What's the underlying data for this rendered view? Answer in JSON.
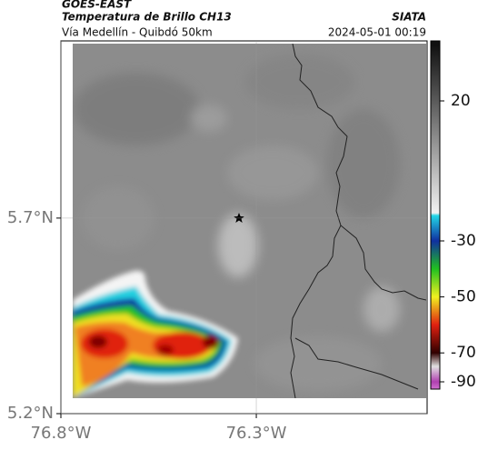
{
  "header": {
    "source": "GOES-EAST",
    "title": "Temperatura de Brillo CH13",
    "brand": "SIATA",
    "route": "Vía Medellín - Quibdó 50km",
    "datetime": "2024-05-01 00:19"
  },
  "map": {
    "xlim": [
      -76.8,
      -75.863
    ],
    "ylim": [
      5.2,
      6.153
    ],
    "xticks": [
      {
        "value": -76.8,
        "label": "76.8°W"
      },
      {
        "value": -76.3,
        "label": "76.3°W"
      }
    ],
    "yticks": [
      {
        "value": 5.2,
        "label": "5.2°N"
      },
      {
        "value": 5.7,
        "label": "5.7°N"
      }
    ],
    "grid": true
  },
  "colorbar": {
    "ticks": [
      20,
      -30,
      -50,
      -70,
      -90
    ],
    "stops": [
      {
        "value": 40,
        "color": "#111111"
      },
      {
        "value": 20,
        "color": "#5a5a5a"
      },
      {
        "value": -20,
        "color": "#f2f2f2"
      },
      {
        "value": -21,
        "color": "#22d6e6"
      },
      {
        "value": -30,
        "color": "#1030a0"
      },
      {
        "value": -40,
        "color": "#20c020"
      },
      {
        "value": -50,
        "color": "#f0f020"
      },
      {
        "value": -60,
        "color": "#e02010"
      },
      {
        "value": -70,
        "color": "#300000"
      },
      {
        "value": -80,
        "color": "#e0e0e0"
      },
      {
        "value": -90,
        "color": "#b040b0"
      },
      {
        "value": -95,
        "color": "#d070d0"
      }
    ]
  }
}
